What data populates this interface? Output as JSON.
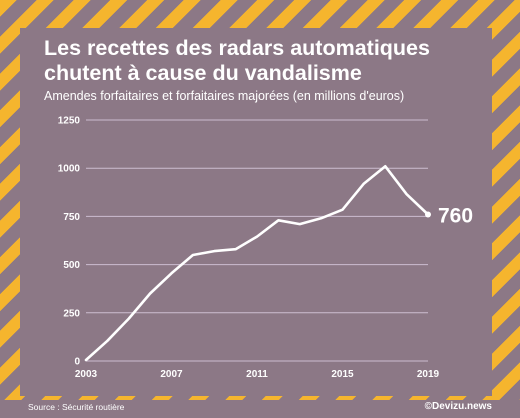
{
  "header": {
    "title": "Les recettes des radars automatiques chutent à cause du vandalisme",
    "subtitle": "Amendes forfaitaires et forfaitaires majorées (en millions d'euros)"
  },
  "footer": {
    "source": "Source : Sécurité routière",
    "brand": "©Devizu.news"
  },
  "colors": {
    "stripe": "#f5b52e",
    "background": "#8c7886",
    "line": "#ffffff"
  },
  "chart_data": {
    "type": "line",
    "title": "Les recettes des radars automatiques chutent à cause du vandalisme",
    "subtitle": "Amendes forfaitaires et forfaitaires majorées (en millions d'euros)",
    "xlabel": "",
    "ylabel": "",
    "x": [
      2003,
      2004,
      2005,
      2006,
      2007,
      2008,
      2009,
      2010,
      2011,
      2012,
      2013,
      2014,
      2015,
      2016,
      2017,
      2018,
      2019
    ],
    "values": [
      5,
      105,
      220,
      350,
      455,
      550,
      570,
      580,
      645,
      730,
      710,
      740,
      785,
      920,
      1010,
      865,
      760
    ],
    "xticks": [
      2003,
      2007,
      2011,
      2015,
      2019
    ],
    "yticks": [
      0,
      250,
      500,
      750,
      1000,
      1250
    ],
    "xlim": [
      2003,
      2019
    ],
    "ylim": [
      0,
      1250
    ],
    "grid": true,
    "end_label": "760"
  }
}
